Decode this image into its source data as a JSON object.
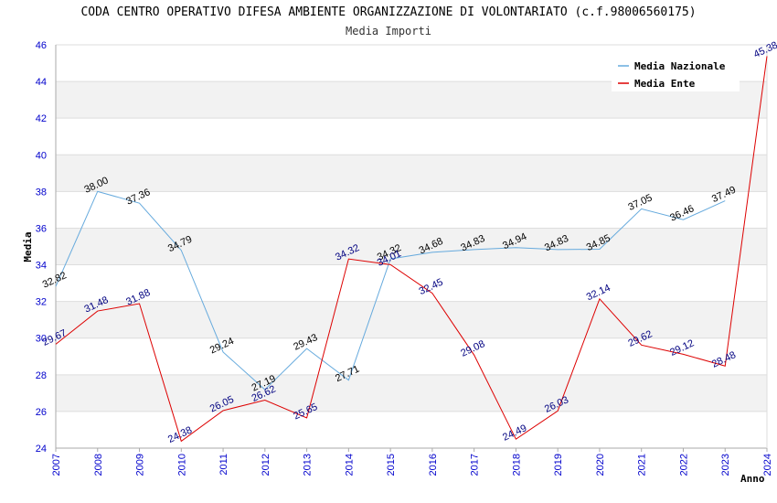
{
  "chart_data": {
    "type": "line",
    "title": "CODA CENTRO OPERATIVO DIFESA AMBIENTE ORGANIZZAZIONE DI VOLONTARIATO (c.f.98006560175)",
    "subtitle": "Media Importi",
    "xlabel": "Anno",
    "ylabel": "Media",
    "ylim": [
      24,
      46
    ],
    "yticks": [
      "24",
      "26",
      "28",
      "30",
      "32",
      "34",
      "36",
      "38",
      "40",
      "42",
      "44",
      "46"
    ],
    "categories": [
      "2007",
      "2008",
      "2009",
      "2010",
      "2011",
      "2012",
      "2013",
      "2014",
      "2015",
      "2016",
      "2017",
      "2018",
      "2019",
      "2020",
      "2021",
      "2022",
      "2023",
      "2024"
    ],
    "grid": true,
    "legend_position": "top-right",
    "series": [
      {
        "name": "Media Nazionale",
        "color": "#66aadd",
        "values": [
          32.82,
          38.0,
          37.36,
          34.79,
          29.24,
          27.19,
          29.43,
          27.71,
          34.32,
          34.68,
          34.83,
          34.94,
          34.83,
          34.85,
          37.05,
          36.46,
          37.49,
          null
        ],
        "labels": [
          "32.82",
          "38.00",
          "37.36",
          "34.79",
          "29.24",
          "27.19",
          "29.43",
          "27.71",
          "34.32",
          "34.68",
          "34.83",
          "34.94",
          "34.83",
          "34.85",
          "37.05",
          "36.46",
          "37.49",
          ""
        ]
      },
      {
        "name": "Media Ente",
        "color": "#dd0000",
        "values": [
          29.67,
          31.48,
          31.88,
          24.38,
          26.05,
          26.62,
          25.65,
          34.32,
          34.01,
          32.45,
          29.08,
          24.49,
          26.03,
          32.14,
          29.62,
          29.12,
          28.48,
          45.38
        ],
        "labels": [
          "29.67",
          "31.48",
          "31.88",
          "24.38",
          "26.05",
          "26.62",
          "25.65",
          "34.32",
          "34.01",
          "32.45",
          "29.08",
          "24.49",
          "26.03",
          "32.14",
          "29.62",
          "29.12",
          "28.48",
          "45.38"
        ]
      }
    ]
  }
}
